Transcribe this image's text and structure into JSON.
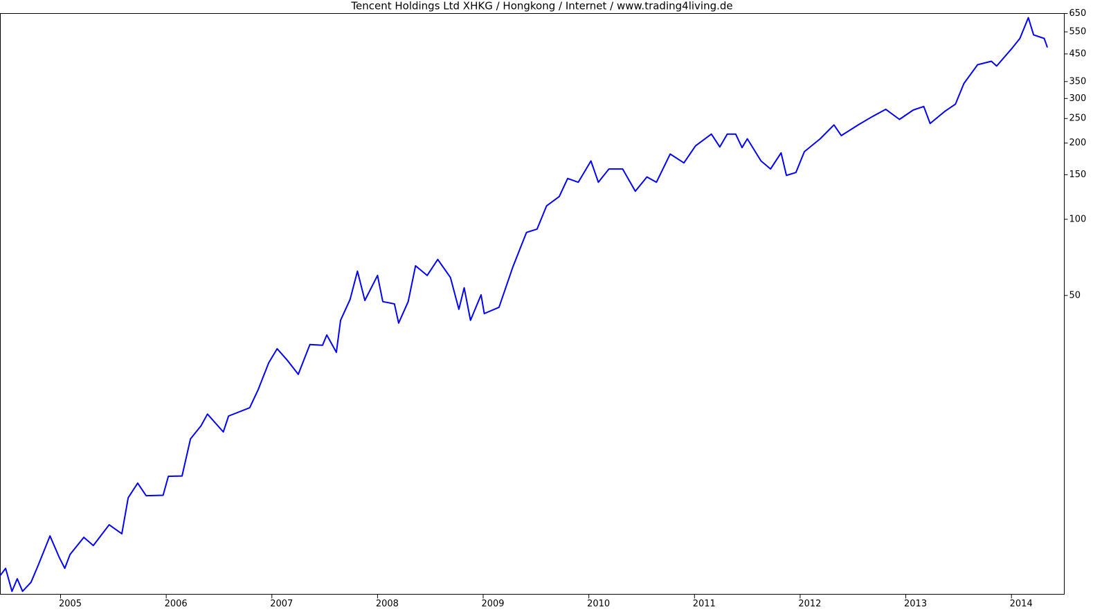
{
  "chart_data": {
    "type": "line",
    "title": "Tencent Holdings Ltd XHKG / Hongkong / Internet / www.trading4living.de",
    "log_y": true,
    "color": "#0000ff",
    "x": [
      2004.43,
      2004.48,
      2004.54,
      2004.59,
      2004.64,
      2004.72,
      2004.79,
      2004.9,
      2004.99,
      2005.04,
      2005.09,
      2005.22,
      2005.31,
      2005.46,
      2005.58,
      2005.64,
      2005.73,
      2005.81,
      2005.97,
      2006.02,
      2006.15,
      2006.23,
      2006.33,
      2006.39,
      2006.54,
      2006.59,
      2006.79,
      2006.87,
      2006.97,
      2007.05,
      2007.15,
      2007.25,
      2007.36,
      2007.48,
      2007.52,
      2007.61,
      2007.65,
      2007.74,
      2007.81,
      2007.88,
      2008.0,
      2008.05,
      2008.16,
      2008.2,
      2008.29,
      2008.36,
      2008.47,
      2008.57,
      2008.69,
      2008.77,
      2008.82,
      2008.88,
      2008.98,
      2009.01,
      2009.15,
      2009.28,
      2009.41,
      2009.51,
      2009.6,
      2009.72,
      2009.8,
      2009.9,
      2010.02,
      2010.09,
      2010.19,
      2010.32,
      2010.44,
      2010.55,
      2010.64,
      2010.77,
      2010.9,
      2011.01,
      2011.16,
      2011.24,
      2011.31,
      2011.39,
      2011.45,
      2011.5,
      2011.63,
      2011.72,
      2011.82,
      2011.87,
      2011.96,
      2012.04,
      2012.19,
      2012.32,
      2012.39,
      2012.55,
      2012.68,
      2012.81,
      2012.94,
      2013.07,
      2013.17,
      2013.23,
      2013.37,
      2013.47,
      2013.55,
      2013.68,
      2013.81,
      2013.86,
      2014.0,
      2014.08,
      2014.16,
      2014.21,
      2014.31,
      2014.34
    ],
    "values": [
      3.92,
      4.18,
      3.39,
      3.8,
      3.39,
      3.68,
      4.31,
      5.61,
      4.59,
      4.18,
      4.74,
      5.54,
      5.14,
      6.21,
      5.72,
      7.94,
      9.07,
      8.09,
      8.12,
      9.65,
      9.68,
      13.57,
      15.29,
      17.0,
      14.45,
      16.7,
      18.0,
      21.2,
      27.1,
      30.8,
      27.6,
      24.4,
      32.0,
      31.8,
      34.9,
      29.8,
      39.9,
      48.2,
      62.4,
      47.8,
      60.0,
      47.3,
      46.3,
      38.9,
      47.3,
      65.5,
      60.0,
      69.4,
      58.9,
      44.1,
      53.6,
      39.9,
      50.3,
      42.4,
      44.9,
      64.7,
      88.7,
      91.5,
      113,
      123,
      145,
      140,
      170,
      140,
      158,
      158,
      129,
      147,
      140,
      181,
      167,
      195,
      217,
      193,
      217,
      217,
      192,
      208,
      170,
      158,
      183,
      149,
      153,
      185,
      208,
      236,
      214,
      236,
      254,
      272,
      248,
      270,
      279,
      239,
      267,
      285,
      344,
      408,
      421,
      403,
      471,
      518,
      626,
      535,
      518,
      477
    ],
    "xlim": [
      2004.43,
      2014.5
    ],
    "xticks": [
      2005,
      2006,
      2007,
      2008,
      2009,
      2010,
      2011,
      2012,
      2013,
      2014
    ],
    "ylim": [
      3.3,
      650
    ],
    "yticks": [
      650,
      550,
      450,
      350,
      300,
      250,
      200,
      150,
      100,
      50
    ]
  }
}
